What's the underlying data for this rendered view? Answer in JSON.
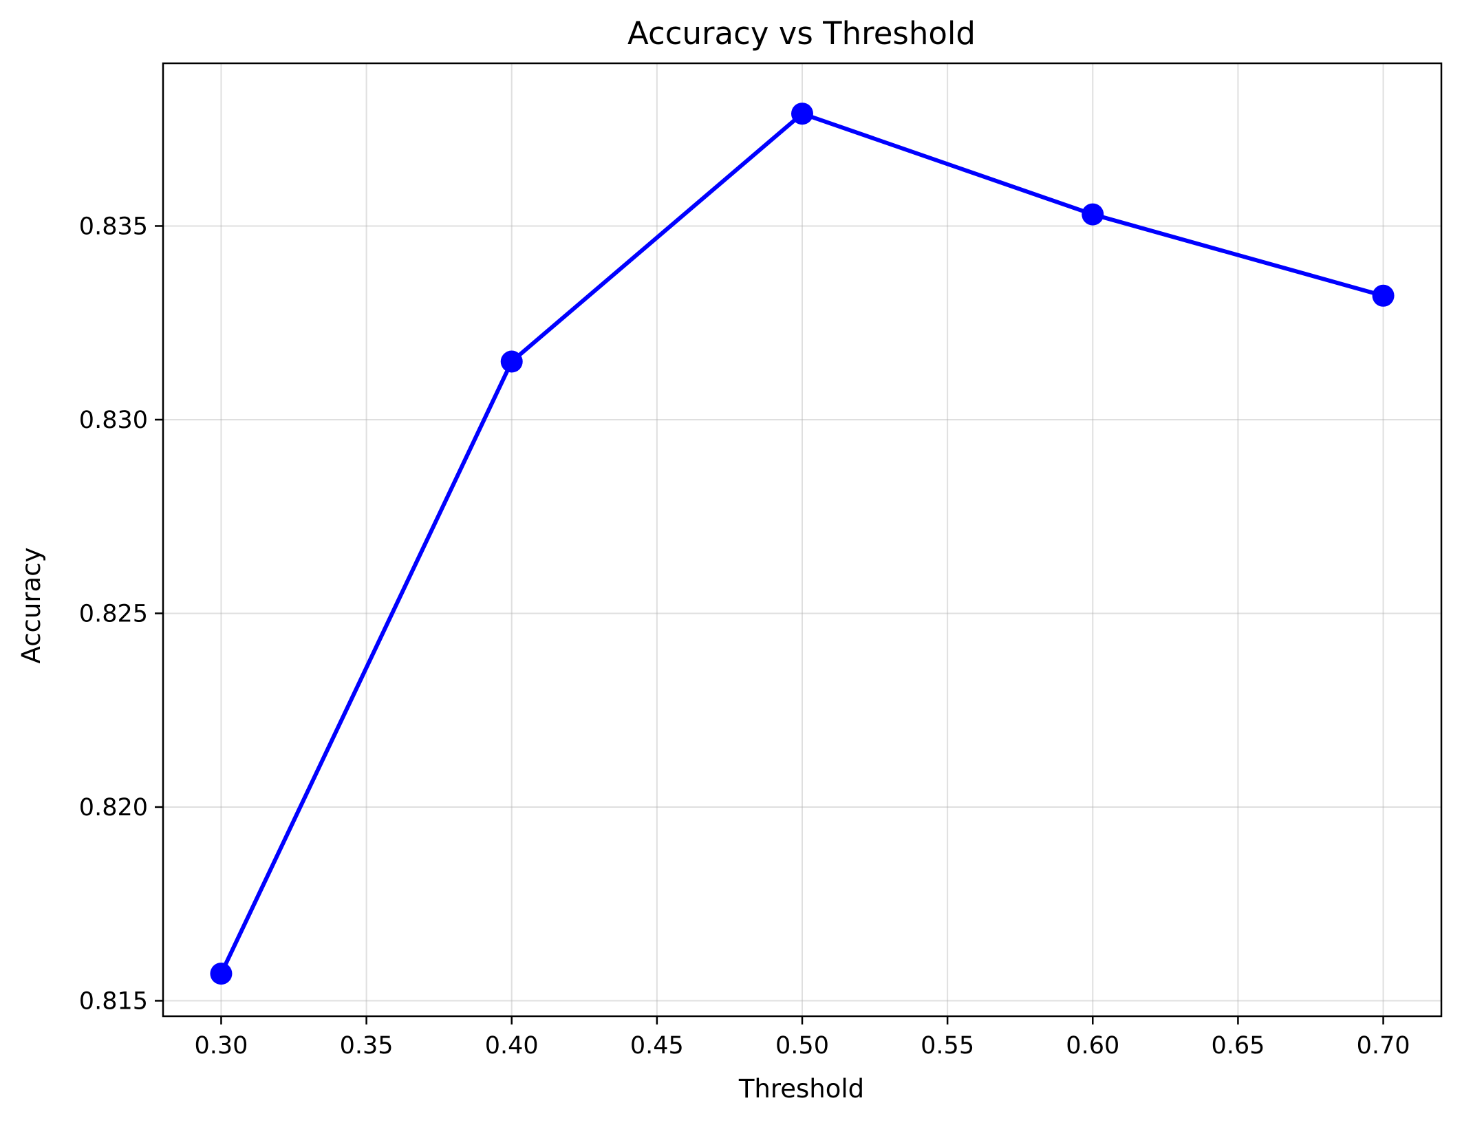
{
  "chart_data": {
    "type": "line",
    "title": "Accuracy vs Threshold",
    "xlabel": "Threshold",
    "ylabel": "Accuracy",
    "xlim": [
      0.28,
      0.72
    ],
    "ylim": [
      0.8146,
      0.8392
    ],
    "xticks": [
      0.3,
      0.35,
      0.4,
      0.45,
      0.5,
      0.55,
      0.6,
      0.65,
      0.7
    ],
    "xtick_labels": [
      "0.30",
      "0.35",
      "0.40",
      "0.45",
      "0.50",
      "0.55",
      "0.60",
      "0.65",
      "0.70"
    ],
    "yticks": [
      0.815,
      0.82,
      0.825,
      0.83,
      0.835
    ],
    "ytick_labels": [
      "0.815",
      "0.820",
      "0.825",
      "0.830",
      "0.835"
    ],
    "grid": true,
    "legend": false,
    "series": [
      {
        "color": "#0000ff",
        "marker": "circle",
        "x": [
          0.3,
          0.4,
          0.5,
          0.6,
          0.7
        ],
        "y": [
          0.8157,
          0.8315,
          0.8379,
          0.8353,
          0.8332
        ]
      }
    ]
  }
}
